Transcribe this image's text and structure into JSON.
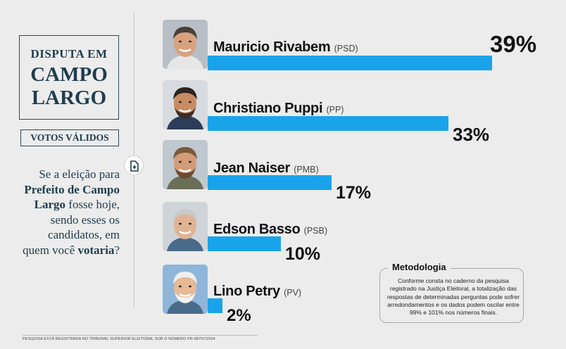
{
  "header": {
    "title_line1": "DISPUTA EM",
    "title_line2": "CAMPO",
    "title_line3": "LARGO",
    "subtitle": "VOTOS VÁLIDOS"
  },
  "question": {
    "part1": "Se a eleição para ",
    "bold1": "Prefeito de Campo Largo",
    "part2": " fosse hoje, sendo esses os candidatos, em quem você ",
    "bold2": "votaria",
    "part3": "?"
  },
  "colors": {
    "bar": "#19a3ea",
    "navy": "#1e3c4e"
  },
  "chart_data": {
    "type": "bar",
    "orientation": "horizontal",
    "title": "DISPUTA EM CAMPO LARGO",
    "subtitle": "VOTOS VÁLIDOS",
    "xlim": [
      0,
      39
    ],
    "grid": false,
    "categories": [
      "Mauricio Rivabem",
      "Christiano Puppi",
      "Jean Naiser",
      "Edson Basso",
      "Lino Petry"
    ],
    "parties": [
      "(PSD)",
      "(PP)",
      "(PMB)",
      "(PSB)",
      "(PV)"
    ],
    "values": [
      39,
      33,
      17,
      10,
      2
    ],
    "labels": [
      "39%",
      "33%",
      "17%",
      "10%",
      "2%"
    ]
  },
  "methodology": {
    "title": "Metodologia",
    "text": "Conforme consta no caderno da pesquisa registrado na Justiça Eleitoral, a totalização das respostas de determinadas perguntas pode sofrer arredondamentos e os dados podem oscilar entre 99% e 101% nos números finais."
  },
  "footer": "PESQUISA ESTÁ REGISTRADA NO TRIBUNAL SUPERIOR ELEITORAL SOB O NÚMERO PR-08797/2024"
}
